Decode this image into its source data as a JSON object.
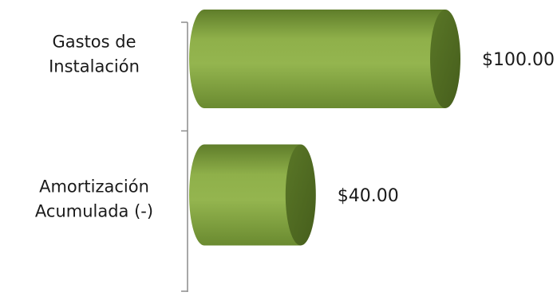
{
  "chart_data": {
    "type": "bar",
    "orientation": "horizontal",
    "style": "3d-cylinder",
    "categories": [
      [
        "Gastos de",
        "Instalación"
      ],
      [
        "Amortización",
        "Acumulada (-)"
      ]
    ],
    "values": [
      100,
      40
    ],
    "data_labels": [
      "$100.00",
      "$40.00"
    ],
    "xlim": [
      0,
      100
    ],
    "grid": false,
    "legend": "none",
    "colors": {
      "body_light": "#8fb04a",
      "body_mid": "#789a3a",
      "body_dark": "#5a7628",
      "cap": "#4f6a22",
      "axis": "#8c8c8c"
    }
  }
}
